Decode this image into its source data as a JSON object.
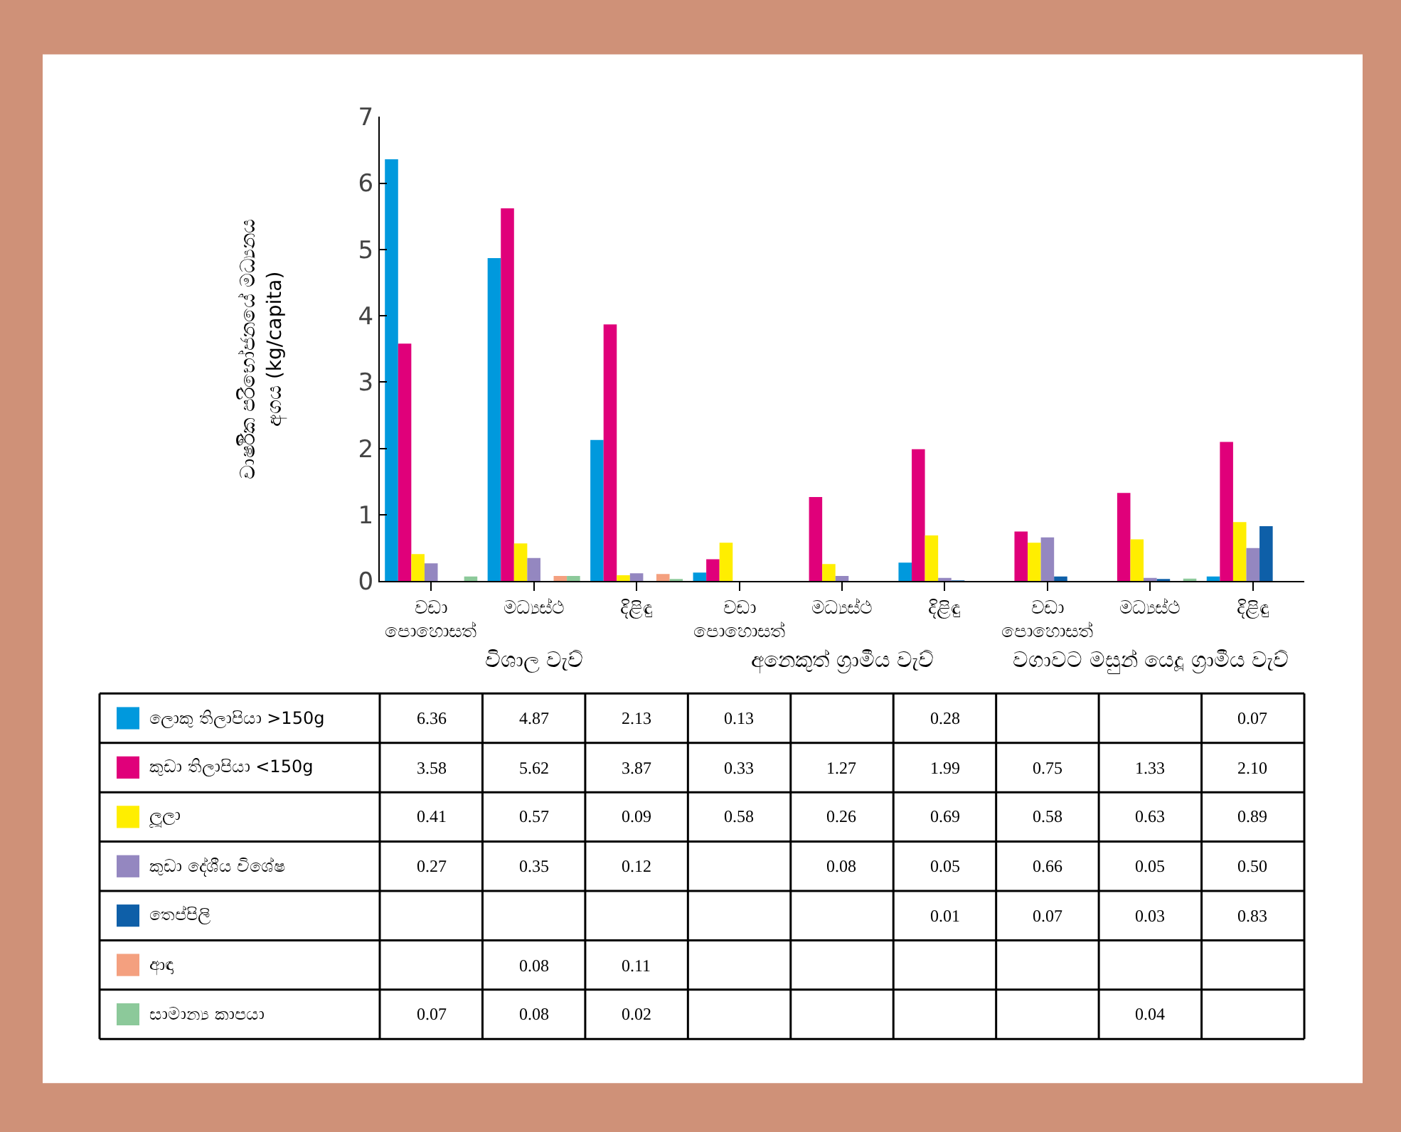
{
  "chart_data": {
    "type": "bar",
    "ylabel": "වාර්ෂික පරිභෝජනයේ මධ්‍යනය\nඅගය (kg/capita)",
    "categories": [
      "වඩා\nපොහොසත්",
      "මධ්‍යස්ථ",
      "දිළිඳු",
      "වඩා\nපොහොසත්",
      "මධ්‍යස්ථ",
      "දිළිඳු",
      "වඩා\nපොහොසත්",
      "මධ්‍යස්ථ",
      "දිළිඳු"
    ],
    "annotations": [
      "විශාල වැව්",
      "අනෙකුත් ග්‍රාමීය වැව්",
      "වගාවට මසුන් යෙදූ ග්‍රාමීය වැව්"
    ],
    "ylim": [
      0,
      7
    ],
    "yticks": [
      0,
      1,
      2,
      3,
      4,
      5,
      6,
      7
    ],
    "legend": "bottom",
    "series": [
      {
        "name": "ලොකු තිලාපියා >150g",
        "color": "#0099dd",
        "values": [
          6.36,
          4.87,
          2.13,
          0.13,
          null,
          0.28,
          null,
          null,
          0.07
        ],
        "value_labels": [
          "6.36",
          "4.87",
          "2.13",
          "0.13",
          null,
          "0.28",
          null,
          null,
          "0.07"
        ]
      },
      {
        "name": "කුඩා තිලාපියා <150g",
        "color": "#e0007a",
        "values": [
          3.58,
          5.62,
          3.87,
          0.33,
          1.27,
          1.99,
          0.75,
          1.33,
          2.1
        ],
        "value_labels": [
          "3.58",
          "5.62",
          "3.87",
          "0.33",
          "1.27",
          "1.99",
          "0.75",
          "1.33",
          "2.10"
        ]
      },
      {
        "name": "ලූලා",
        "color": "#ffee00",
        "values": [
          0.41,
          0.57,
          0.09,
          0.58,
          0.26,
          0.69,
          0.58,
          0.63,
          0.89
        ],
        "value_labels": [
          "0.41",
          "0.57",
          "0.09",
          "0.58",
          "0.26",
          "0.69",
          "0.58",
          "0.63",
          "0.89"
        ]
      },
      {
        "name": "කුඩා දේශීය විශේෂ",
        "color": "#9487c0",
        "values": [
          0.27,
          0.35,
          0.12,
          null,
          0.08,
          0.05,
          0.66,
          0.05,
          0.5
        ],
        "value_labels": [
          "0.27",
          "0.35",
          "0.12",
          null,
          "0.08",
          "0.05",
          "0.66",
          "0.05",
          "0.50"
        ]
      },
      {
        "name": "තෙප්පිලි",
        "color": "#0e5fa8",
        "values": [
          null,
          null,
          null,
          null,
          null,
          0.01,
          0.07,
          0.03,
          0.83
        ],
        "value_labels": [
          null,
          null,
          null,
          null,
          null,
          "0.01",
          "0.07",
          "0.03",
          "0.83"
        ]
      },
      {
        "name": "ආඳා",
        "color": "#f4a07f",
        "values": [
          null,
          0.08,
          0.11,
          null,
          null,
          null,
          null,
          null,
          null
        ],
        "value_labels": [
          null,
          "0.08",
          "0.11",
          null,
          null,
          null,
          null,
          null,
          null
        ]
      },
      {
        "name": "සාමාන්‍ය කාපයා",
        "color": "#8cc99a",
        "values": [
          0.07,
          0.08,
          0.02,
          null,
          null,
          null,
          null,
          0.04,
          null
        ],
        "value_labels": [
          "0.07",
          "0.08",
          "0.02",
          null,
          null,
          null,
          null,
          "0.04",
          null
        ]
      }
    ]
  }
}
